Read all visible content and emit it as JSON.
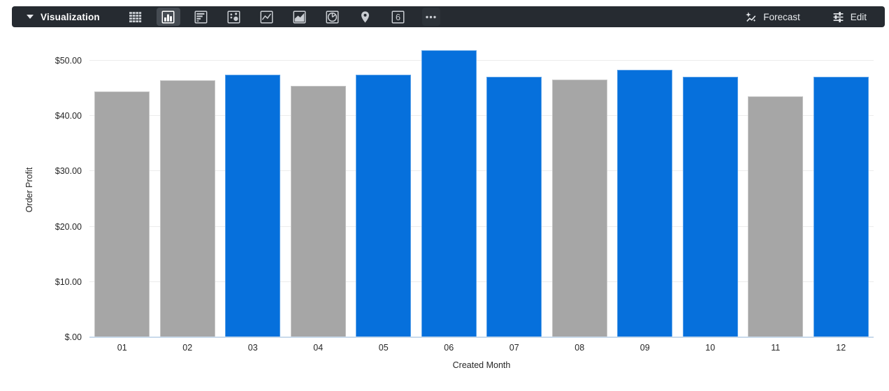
{
  "toolbar": {
    "title": "Visualization",
    "selected_index": 1,
    "icons": [
      {
        "id": "table",
        "name": "table-icon"
      },
      {
        "id": "column",
        "name": "column-chart-icon"
      },
      {
        "id": "bar",
        "name": "bar-chart-icon"
      },
      {
        "id": "scatter",
        "name": "scatter-chart-icon"
      },
      {
        "id": "line",
        "name": "line-chart-icon"
      },
      {
        "id": "area",
        "name": "area-chart-icon"
      },
      {
        "id": "pie",
        "name": "pie-chart-icon"
      },
      {
        "id": "map",
        "name": "map-pin-icon"
      },
      {
        "id": "single-value",
        "name": "single-value-icon",
        "glyph": "6"
      },
      {
        "id": "more",
        "name": "more-options-icon"
      }
    ],
    "forecast_label": "Forecast",
    "edit_label": "Edit"
  },
  "colors": {
    "toolbar_bg": "#262B31",
    "selected_icon_bg": "#454B52",
    "bar_blue": "#0670DC",
    "bar_gray": "#A6A6A6",
    "gridline": "#ECECEC",
    "axis_baseline": "#C9DAEB",
    "axis_text": "#262626"
  },
  "chart_data": {
    "type": "bar",
    "title": "",
    "xlabel": "Created Month",
    "ylabel": "Order Profit",
    "categories": [
      "01",
      "02",
      "03",
      "04",
      "05",
      "06",
      "07",
      "08",
      "09",
      "10",
      "11",
      "12"
    ],
    "series": [
      {
        "name": "Order Profit",
        "values": [
          44.5,
          46.5,
          47.5,
          45.5,
          47.5,
          51.9,
          47.1,
          46.6,
          48.4,
          47.1,
          43.6,
          47.1
        ]
      }
    ],
    "bar_colors": [
      "#A6A6A6",
      "#A6A6A6",
      "#0670DC",
      "#A6A6A6",
      "#0670DC",
      "#0670DC",
      "#0670DC",
      "#A6A6A6",
      "#0670DC",
      "#0670DC",
      "#A6A6A6",
      "#0670DC"
    ],
    "y_ticks": [
      {
        "label": "$50.00",
        "value": 50
      },
      {
        "label": "$40.00",
        "value": 40
      },
      {
        "label": "$30.00",
        "value": 30
      },
      {
        "label": "$20.00",
        "value": 20
      },
      {
        "label": "$10.00",
        "value": 10
      },
      {
        "label": "$.00",
        "value": 0
      }
    ],
    "ylim": [
      0,
      53.4
    ],
    "grid": true,
    "legend": "none"
  }
}
